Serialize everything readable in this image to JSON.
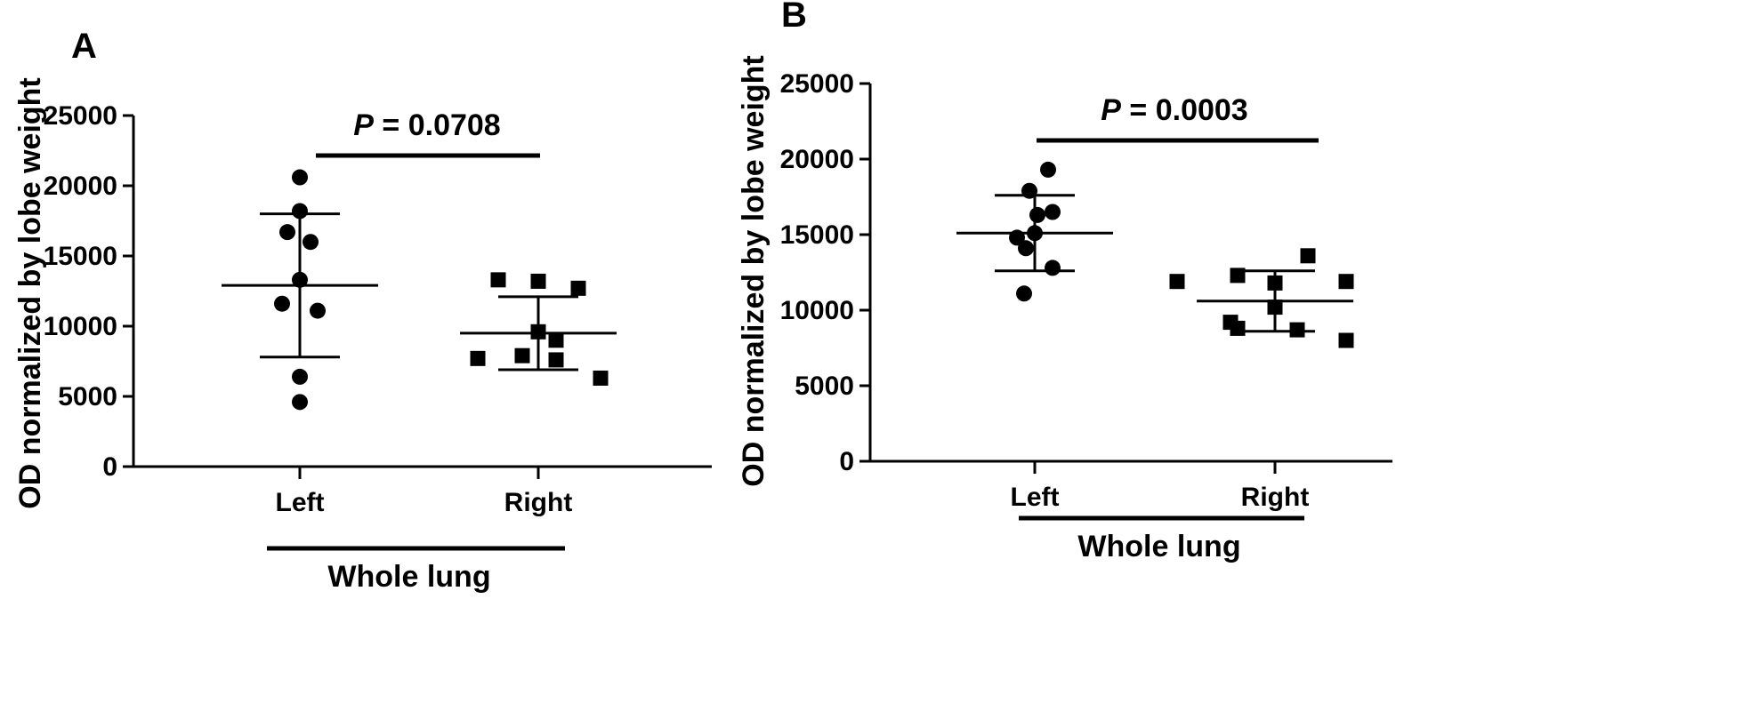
{
  "chart_data": [
    {
      "type": "scatter",
      "panel": "A",
      "ylabel": "OD normalized by lobe weight",
      "categories": [
        "Left",
        "Right"
      ],
      "group_label": "Whole lung",
      "annotation": {
        "italic": "P",
        "text": " = 0.0708"
      },
      "ylim": [
        0,
        25000
      ],
      "yticks": [
        0,
        5000,
        10000,
        15000,
        20000,
        25000
      ],
      "series": [
        {
          "marker": "circle",
          "category": "Left",
          "values": [
            20600,
            18200,
            16700,
            16000,
            13300,
            11600,
            11100,
            6400,
            4600
          ],
          "mean": 12900,
          "sd_low": 7800,
          "sd_high": 18000
        },
        {
          "marker": "square",
          "category": "Right",
          "values": [
            13300,
            13200,
            12700,
            9600,
            9000,
            7900,
            7700,
            7600,
            6300
          ],
          "mean": 9500,
          "sd_low": 6900,
          "sd_high": 12100
        }
      ]
    },
    {
      "type": "scatter",
      "panel": "B",
      "ylabel": "OD normalized by lobe weight",
      "categories": [
        "Left",
        "Right"
      ],
      "group_label": "Whole lung",
      "annotation": {
        "italic": "P",
        "text": " = 0.0003"
      },
      "ylim": [
        0,
        25000
      ],
      "yticks": [
        0,
        5000,
        10000,
        15000,
        20000,
        25000
      ],
      "series": [
        {
          "marker": "circle",
          "category": "Left",
          "values": [
            19300,
            17900,
            16500,
            16300,
            15100,
            14800,
            14100,
            12800,
            11100
          ],
          "mean": 15100,
          "sd_low": 12600,
          "sd_high": 17600
        },
        {
          "marker": "square",
          "category": "Right",
          "values": [
            13600,
            12300,
            11900,
            11900,
            11800,
            10200,
            9200,
            8800,
            8700,
            8000
          ],
          "mean": 10600,
          "sd_low": 8600,
          "sd_high": 12600
        }
      ]
    }
  ]
}
